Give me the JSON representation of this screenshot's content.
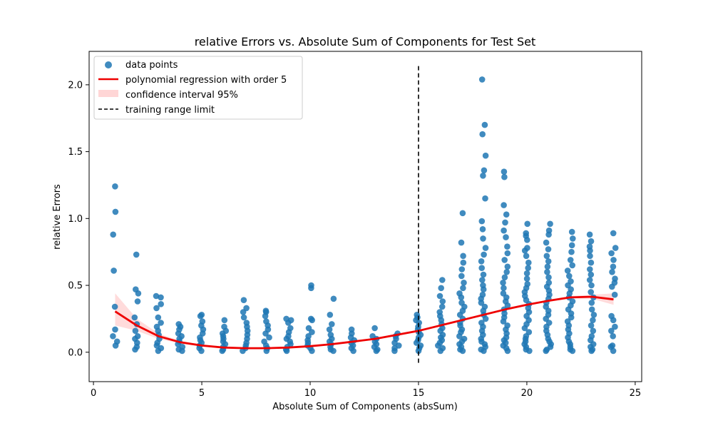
{
  "chart_data": {
    "type": "scatter",
    "title": "relative Errors vs. Absolute Sum of Components for Test Set",
    "xlabel": "Absolute Sum of Components (absSum)",
    "ylabel": "relative Errors",
    "xlim": [
      -0.2,
      25.3
    ],
    "ylim": [
      -0.22,
      2.25
    ],
    "xticks": [
      0,
      5,
      10,
      15,
      20,
      25
    ],
    "yticks": [
      0.0,
      0.5,
      1.0,
      1.5,
      2.0
    ],
    "xtick_labels": [
      "0",
      "5",
      "10",
      "15",
      "20",
      "25"
    ],
    "ytick_labels": [
      "0.0",
      "0.5",
      "1.0",
      "1.5",
      "2.0"
    ],
    "grid": false,
    "legend_position": "upper-left",
    "colors": {
      "points": "#1f77b4",
      "regression": "#ee0000",
      "confidence": "#ff9999",
      "limit": "#000000"
    },
    "legend": [
      {
        "label": "data points",
        "kind": "marker"
      },
      {
        "label": "polynomial regression with order 5",
        "kind": "line"
      },
      {
        "label": "confidence interval 95%",
        "kind": "band"
      },
      {
        "label": "training range limit",
        "kind": "dashed"
      }
    ],
    "series": [
      {
        "name": "data points",
        "kind": "scatter",
        "groups": [
          {
            "x": 1,
            "points": [
              1.24,
              1.05,
              0.88,
              0.61,
              0.34,
              0.17,
              0.12,
              0.08,
              0.05
            ]
          },
          {
            "x": 2,
            "points": [
              0.73,
              0.47,
              0.44,
              0.38,
              0.26,
              0.21,
              0.16,
              0.12,
              0.1,
              0.07,
              0.04,
              0.02
            ]
          },
          {
            "x": 3,
            "points": [
              0.42,
              0.41,
              0.36,
              0.33,
              0.26,
              0.22,
              0.19,
              0.16,
              0.13,
              0.1,
              0.07,
              0.05,
              0.03,
              0.01
            ]
          },
          {
            "x": 4,
            "points": [
              0.21,
              0.19,
              0.17,
              0.14,
              0.12,
              0.1,
              0.08,
              0.06,
              0.04,
              0.02,
              0.01
            ]
          },
          {
            "x": 5,
            "points": [
              0.28,
              0.27,
              0.23,
              0.2,
              0.17,
              0.14,
              0.11,
              0.09,
              0.07,
              0.05,
              0.03,
              0.01
            ]
          },
          {
            "x": 6,
            "points": [
              0.24,
              0.19,
              0.16,
              0.14,
              0.12,
              0.1,
              0.08,
              0.06,
              0.04,
              0.02,
              0.01
            ]
          },
          {
            "x": 7,
            "points": [
              0.39,
              0.33,
              0.3,
              0.26,
              0.22,
              0.19,
              0.16,
              0.13,
              0.1,
              0.07,
              0.05,
              0.03,
              0.01
            ]
          },
          {
            "x": 8,
            "points": [
              0.31,
              0.3,
              0.27,
              0.23,
              0.2,
              0.17,
              0.14,
              0.11,
              0.08,
              0.05,
              0.03,
              0.01
            ]
          },
          {
            "x": 9,
            "points": [
              0.25,
              0.24,
              0.22,
              0.18,
              0.15,
              0.12,
              0.1,
              0.08,
              0.06,
              0.04,
              0.02,
              0.01
            ]
          },
          {
            "x": 10,
            "points": [
              0.5,
              0.48,
              0.25,
              0.24,
              0.18,
              0.15,
              0.12,
              0.09,
              0.07,
              0.05,
              0.03,
              0.01
            ]
          },
          {
            "x": 11,
            "points": [
              0.4,
              0.28,
              0.21,
              0.17,
              0.13,
              0.1,
              0.08,
              0.06,
              0.04,
              0.02,
              0.01
            ]
          },
          {
            "x": 12,
            "points": [
              0.17,
              0.14,
              0.11,
              0.09,
              0.07,
              0.05,
              0.03,
              0.01
            ]
          },
          {
            "x": 13,
            "points": [
              0.18,
              0.12,
              0.1,
              0.08,
              0.06,
              0.04,
              0.02,
              0.01
            ]
          },
          {
            "x": 14,
            "points": [
              0.14,
              0.12,
              0.1,
              0.07,
              0.05,
              0.03,
              0.01
            ]
          },
          {
            "x": 15,
            "points": [
              0.28,
              0.26,
              0.24,
              0.22,
              0.19,
              0.17,
              0.15,
              0.13,
              0.11,
              0.09,
              0.07,
              0.05,
              0.03,
              0.01
            ]
          },
          {
            "x": 16,
            "points": [
              0.54,
              0.48,
              0.42,
              0.38,
              0.34,
              0.3,
              0.27,
              0.24,
              0.21,
              0.18,
              0.16,
              0.13,
              0.11,
              0.09,
              0.07,
              0.05,
              0.03,
              0.01
            ]
          },
          {
            "x": 17,
            "points": [
              1.04,
              0.82,
              0.72,
              0.67,
              0.62,
              0.57,
              0.52,
              0.48,
              0.44,
              0.41,
              0.37,
              0.34,
              0.31,
              0.28,
              0.25,
              0.22,
              0.2,
              0.17,
              0.15,
              0.12,
              0.1,
              0.08,
              0.06,
              0.04,
              0.02,
              0.01
            ]
          },
          {
            "x": 18,
            "points": [
              2.04,
              1.7,
              1.63,
              1.47,
              1.36,
              1.32,
              1.15,
              0.98,
              0.92,
              0.85,
              0.78,
              0.73,
              0.68,
              0.63,
              0.58,
              0.54,
              0.5,
              0.47,
              0.43,
              0.4,
              0.37,
              0.34,
              0.31,
              0.28,
              0.25,
              0.22,
              0.19,
              0.16,
              0.13,
              0.1,
              0.08,
              0.06,
              0.04,
              0.02,
              0.01
            ]
          },
          {
            "x": 19,
            "points": [
              1.35,
              1.31,
              1.1,
              1.03,
              0.97,
              0.91,
              0.86,
              0.79,
              0.74,
              0.69,
              0.64,
              0.6,
              0.56,
              0.52,
              0.48,
              0.44,
              0.41,
              0.38,
              0.35,
              0.32,
              0.29,
              0.26,
              0.23,
              0.2,
              0.17,
              0.14,
              0.11,
              0.09,
              0.07,
              0.05,
              0.03,
              0.01
            ]
          },
          {
            "x": 20,
            "points": [
              0.96,
              0.89,
              0.87,
              0.84,
              0.78,
              0.76,
              0.72,
              0.67,
              0.63,
              0.59,
              0.55,
              0.51,
              0.48,
              0.45,
              0.42,
              0.39,
              0.36,
              0.33,
              0.3,
              0.27,
              0.24,
              0.21,
              0.18,
              0.15,
              0.12,
              0.1,
              0.08,
              0.06,
              0.04,
              0.02,
              0.01
            ]
          },
          {
            "x": 21,
            "points": [
              0.96,
              0.91,
              0.88,
              0.82,
              0.77,
              0.72,
              0.68,
              0.64,
              0.6,
              0.56,
              0.52,
              0.49,
              0.46,
              0.43,
              0.4,
              0.37,
              0.34,
              0.31,
              0.28,
              0.25,
              0.22,
              0.19,
              0.16,
              0.13,
              0.1,
              0.08,
              0.06,
              0.04,
              0.02,
              0.01
            ]
          },
          {
            "x": 22,
            "points": [
              0.9,
              0.85,
              0.8,
              0.75,
              0.69,
              0.65,
              0.61,
              0.57,
              0.53,
              0.5,
              0.47,
              0.44,
              0.41,
              0.38,
              0.35,
              0.32,
              0.29,
              0.26,
              0.23,
              0.2,
              0.17,
              0.14,
              0.11,
              0.08,
              0.06,
              0.04,
              0.02,
              0.01
            ]
          },
          {
            "x": 23,
            "points": [
              0.88,
              0.83,
              0.79,
              0.76,
              0.72,
              0.67,
              0.62,
              0.58,
              0.54,
              0.5,
              0.45,
              0.41,
              0.37,
              0.32,
              0.28,
              0.24,
              0.2,
              0.16,
              0.12,
              0.09,
              0.06,
              0.04,
              0.02,
              0.01
            ]
          },
          {
            "x": 24,
            "points": [
              0.89,
              0.78,
              0.74,
              0.69,
              0.64,
              0.6,
              0.55,
              0.52,
              0.49,
              0.43,
              0.27,
              0.24,
              0.19,
              0.16,
              0.12,
              0.05,
              0.04,
              0.01
            ]
          }
        ]
      },
      {
        "name": "polynomial regression with order 5",
        "kind": "line",
        "x": [
          1,
          2,
          3,
          4,
          5,
          6,
          7,
          8,
          9,
          10,
          11,
          12,
          13,
          14,
          15,
          16,
          17,
          18,
          19,
          20,
          21,
          22,
          23,
          24
        ],
        "y": [
          0.305,
          0.2,
          0.12,
          0.075,
          0.05,
          0.035,
          0.03,
          0.03,
          0.035,
          0.045,
          0.06,
          0.08,
          0.1,
          0.13,
          0.16,
          0.2,
          0.24,
          0.28,
          0.32,
          0.355,
          0.385,
          0.41,
          0.415,
          0.395
        ]
      },
      {
        "name": "confidence interval 95%",
        "kind": "band",
        "x": [
          1,
          2,
          3,
          4,
          5,
          6,
          7,
          8,
          9,
          10,
          11,
          12,
          13,
          14,
          15,
          16,
          17,
          18,
          19,
          20,
          21,
          22,
          23,
          24
        ],
        "lower": [
          0.2,
          0.16,
          0.1,
          0.065,
          0.042,
          0.028,
          0.024,
          0.024,
          0.029,
          0.039,
          0.054,
          0.073,
          0.093,
          0.122,
          0.152,
          0.192,
          0.232,
          0.272,
          0.312,
          0.347,
          0.377,
          0.4,
          0.4,
          0.355
        ]
      }
    ],
    "band_upper": [
      0.44,
      0.25,
      0.14,
      0.085,
      0.058,
      0.042,
      0.036,
      0.036,
      0.041,
      0.051,
      0.066,
      0.087,
      0.107,
      0.138,
      0.168,
      0.208,
      0.248,
      0.288,
      0.328,
      0.363,
      0.393,
      0.42,
      0.43,
      0.44
    ],
    "vlines": [
      {
        "name": "training range limit",
        "x": 15,
        "ymin": -0.1,
        "ymax": 2.14
      }
    ]
  }
}
